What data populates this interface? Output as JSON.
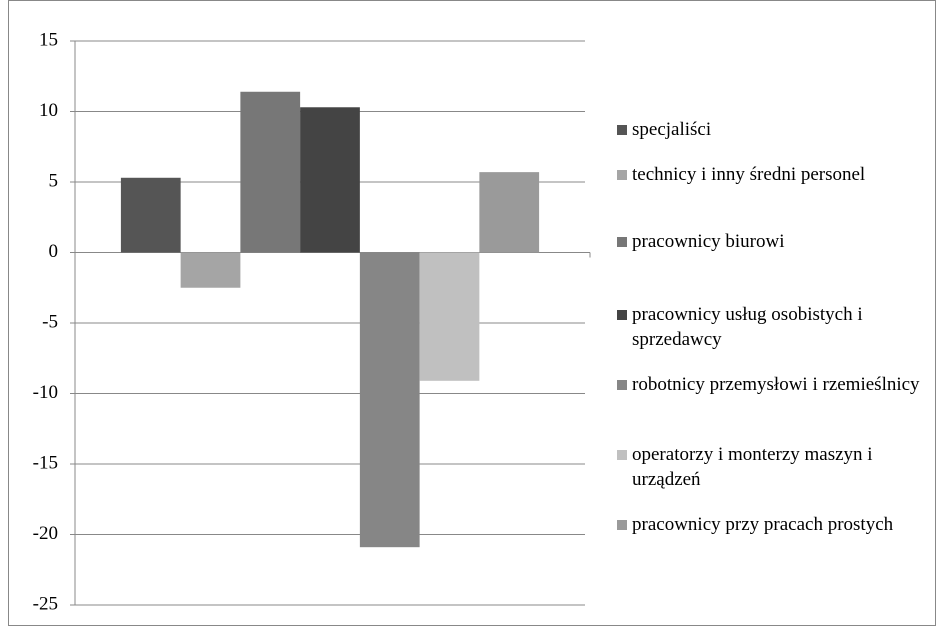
{
  "chart_data": {
    "type": "bar",
    "series": [
      {
        "name": "specjaliści",
        "color": "#555555",
        "values": [
          5.3
        ]
      },
      {
        "name": "technicy i inny średni personel",
        "color": "#a5a5a5",
        "values": [
          -2.5
        ]
      },
      {
        "name": "pracownicy biurowi",
        "color": "#777777",
        "values": [
          11.4
        ]
      },
      {
        "name": "pracownicy usług osobistych i sprzedawcy",
        "color": "#444444",
        "values": [
          10.3
        ]
      },
      {
        "name": "robotnicy przemysłowi i rzemieślnicy",
        "color": "#868686",
        "values": [
          -20.9
        ]
      },
      {
        "name": "operatorzy i monterzy maszyn i urządzeń",
        "color": "#c0c0c0",
        "values": [
          -9.1
        ]
      },
      {
        "name": "pracownicy przy pracach prostych",
        "color": "#9a9a9a",
        "values": [
          5.7
        ]
      }
    ],
    "ylim": [
      -25,
      15
    ],
    "yticks": [
      15,
      10,
      5,
      0,
      -5,
      -10,
      -15,
      -20,
      -25
    ],
    "grid": true,
    "legend": "right"
  }
}
